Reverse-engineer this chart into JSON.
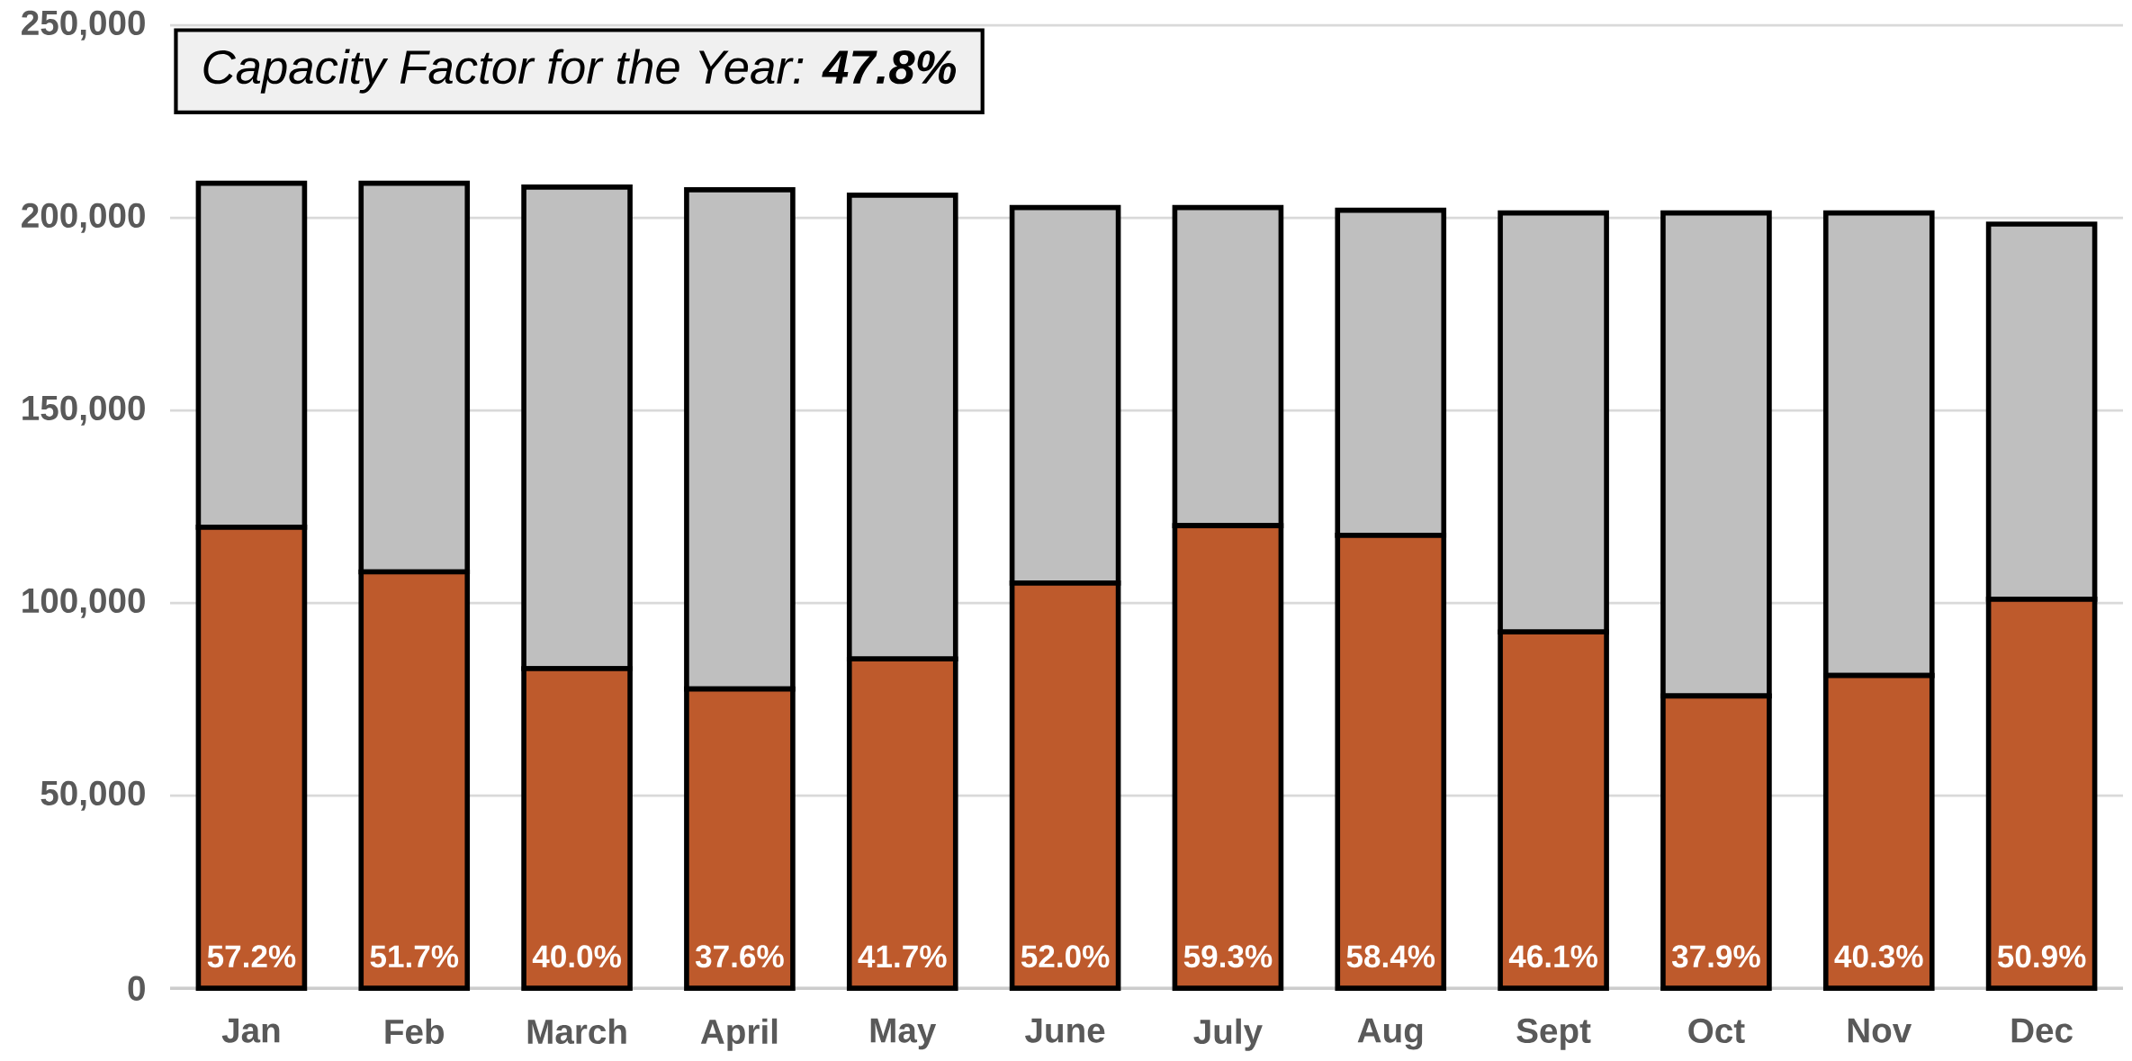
{
  "chart_data": {
    "type": "bar",
    "title": "Capacity Factor for the Year: **47.8%**",
    "categories": [
      "Jan",
      "Feb",
      "March",
      "April",
      "May",
      "June",
      "July",
      "Aug",
      "Sept",
      "Oct",
      "Nov",
      "Dec"
    ],
    "stacked": true,
    "series": [
      {
        "color": "#be5a2c",
        "values": [
          119700,
          108100,
          83000,
          77700,
          85500,
          105200,
          120100,
          117600,
          92500,
          75900,
          81200,
          101000
        ]
      },
      {
        "color": "#bfbfbf",
        "values": [
          89300,
          100900,
          125000,
          129600,
          120400,
          97500,
          82600,
          84400,
          108800,
          125400,
          120100,
          97400
        ]
      }
    ],
    "ylim": [
      0,
      250000
    ],
    "yticks": [
      {
        "value": 0,
        "label": "0"
      },
      {
        "value": 50000,
        "label": "50,000"
      },
      {
        "value": 100000,
        "label": "100,000"
      },
      {
        "value": 150000,
        "label": "150,000"
      },
      {
        "value": 200000,
        "label": "200,000"
      },
      {
        "value": 250000,
        "label": "250,000"
      }
    ],
    "grid": "y",
    "annotations": [
      {
        "text": "57.2%",
        "x": "Jan",
        "y": 0
      },
      {
        "text": "51.7%",
        "x": "Feb",
        "y": 0
      },
      {
        "text": "40.0%",
        "x": "March",
        "y": 0
      },
      {
        "text": "37.6%",
        "x": "April",
        "y": 0
      },
      {
        "text": "41.7%",
        "x": "May",
        "y": 0
      },
      {
        "text": "52.0%",
        "x": "June",
        "y": 0
      },
      {
        "text": "59.3%",
        "x": "July",
        "y": 0
      },
      {
        "text": "58.4%",
        "x": "Aug",
        "y": 0
      },
      {
        "text": "46.1%",
        "x": "Sept",
        "y": 0
      },
      {
        "text": "37.9%",
        "x": "Oct",
        "y": 0
      },
      {
        "text": "40.3%",
        "x": "Nov",
        "y": 0
      },
      {
        "text": "50.9%",
        "x": "Dec",
        "y": 0
      }
    ]
  }
}
